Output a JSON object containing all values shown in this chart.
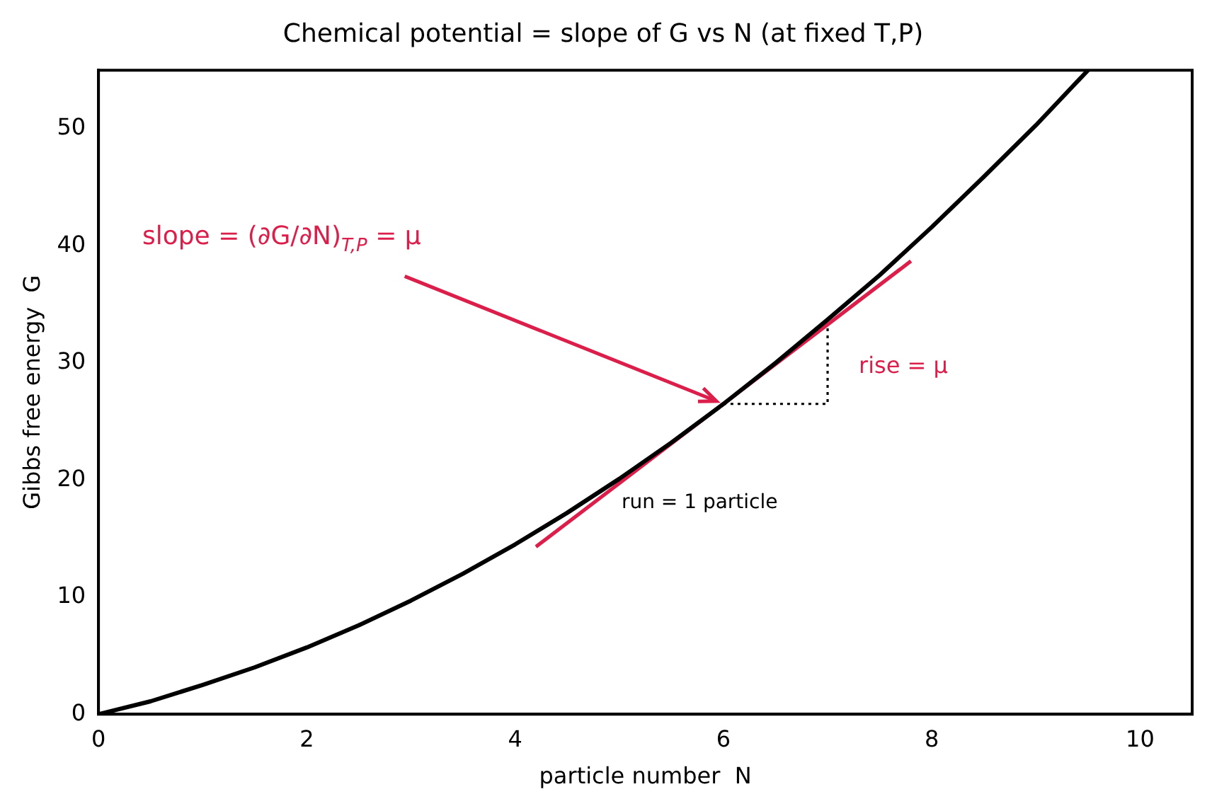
{
  "chart_data": {
    "type": "line",
    "title": "Chemical potential = slope of G vs N (at fixed T,P)",
    "xlabel": "particle number  N",
    "ylabel": "Gibbs free energy  G",
    "xlim": [
      0,
      10.5
    ],
    "xticks": [
      0,
      2,
      4,
      6,
      8,
      10
    ],
    "ylim": [
      0,
      55
    ],
    "yticks": [
      0,
      10,
      20,
      30,
      40,
      50
    ],
    "grid": false,
    "legend": false,
    "marker": "none",
    "series": [
      {
        "color": "#000000",
        "line_style": "solid",
        "x": [
          0,
          0.5,
          1,
          1.5,
          2,
          2.5,
          3,
          3.5,
          4,
          4.5,
          5,
          5.5,
          6,
          6.5,
          7,
          7.5,
          8,
          8.5,
          9,
          9.5
        ],
        "values": [
          0,
          1.1,
          2.5,
          4.0,
          5.7,
          7.6,
          9.7,
          12.0,
          14.5,
          17.2,
          20.1,
          23.2,
          26.5,
          30.0,
          33.7,
          37.5,
          41.6,
          45.9,
          50.3,
          55.0
        ]
      },
      {
        "color": "#dc1e4b",
        "line_style": "solid",
        "x": [
          4.2,
          7.8
        ],
        "values": [
          14.3,
          38.7
        ]
      },
      {
        "color": "#000000",
        "line_style": "dotted",
        "x": [
          6,
          7,
          7
        ],
        "values": [
          26.5,
          26.5,
          33.3
        ]
      }
    ],
    "annotations": [
      {
        "text": "slope = (∂G/∂N)$_{T,P}$ = μ",
        "x": 6,
        "y": 26.5
      },
      "rise = μ",
      "run = 1 particle"
    ]
  }
}
